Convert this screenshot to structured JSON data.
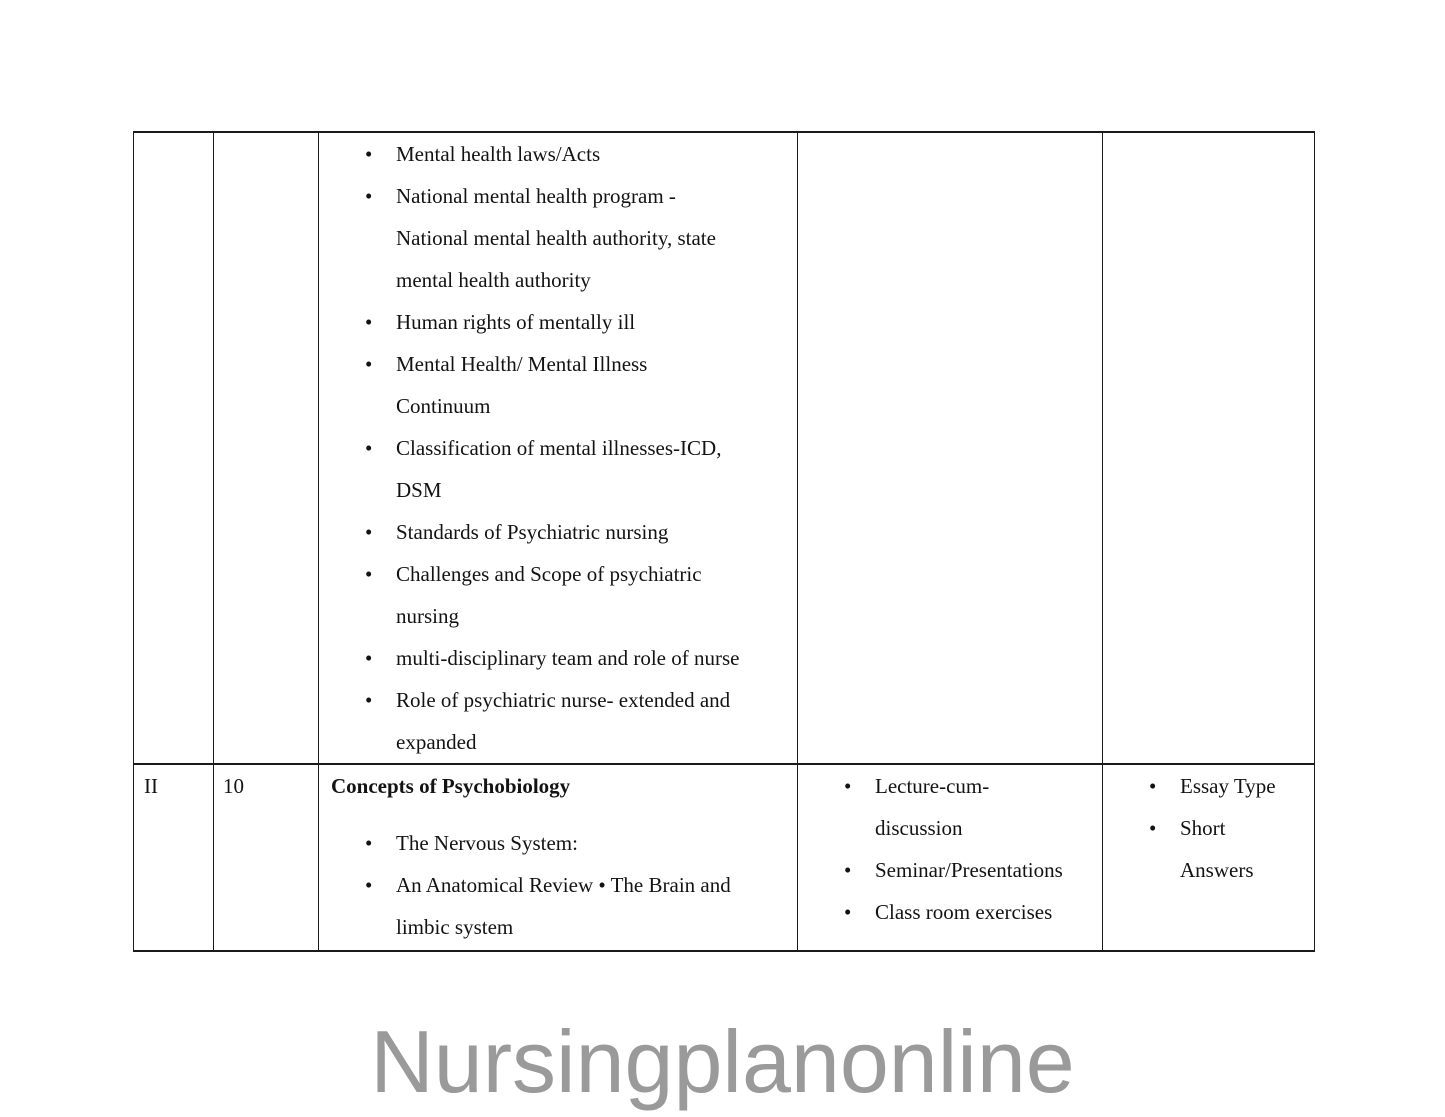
{
  "page": {
    "background": "#ffffff"
  },
  "watermark": {
    "text": "Nursingplanonline",
    "color": "#9a9a9a"
  },
  "list_marker": "•",
  "table": {
    "border_color": "#1a1a1a",
    "rows": [
      {
        "unit": "",
        "hours": "",
        "content": {
          "title": "",
          "items": [
            "Mental health laws/Acts",
            "National mental health program - National mental health authority, state mental health authority",
            "Human rights of mentally ill",
            "Mental Health/ Mental Illness Continuum",
            "Classification of mental illnesses-ICD, DSM",
            "Standards of Psychiatric nursing",
            "Challenges and Scope of psychiatric nursing",
            "multi-disciplinary team and role of nurse",
            "Role of psychiatric nurse- extended and expanded"
          ]
        },
        "teaching_learning": {
          "items": []
        },
        "assessment": {
          "items": []
        }
      },
      {
        "unit": "II",
        "hours": "10",
        "content": {
          "title": "Concepts of Psychobiology",
          "items": [
            "The Nervous System:",
            "An Anatomical Review • The Brain and limbic system"
          ]
        },
        "teaching_learning": {
          "items": [
            "Lecture-cum-discussion",
            "Seminar/Presentations",
            "Class room exercises"
          ]
        },
        "assessment": {
          "items": [
            "Essay Type",
            "Short Answers"
          ]
        }
      }
    ]
  }
}
